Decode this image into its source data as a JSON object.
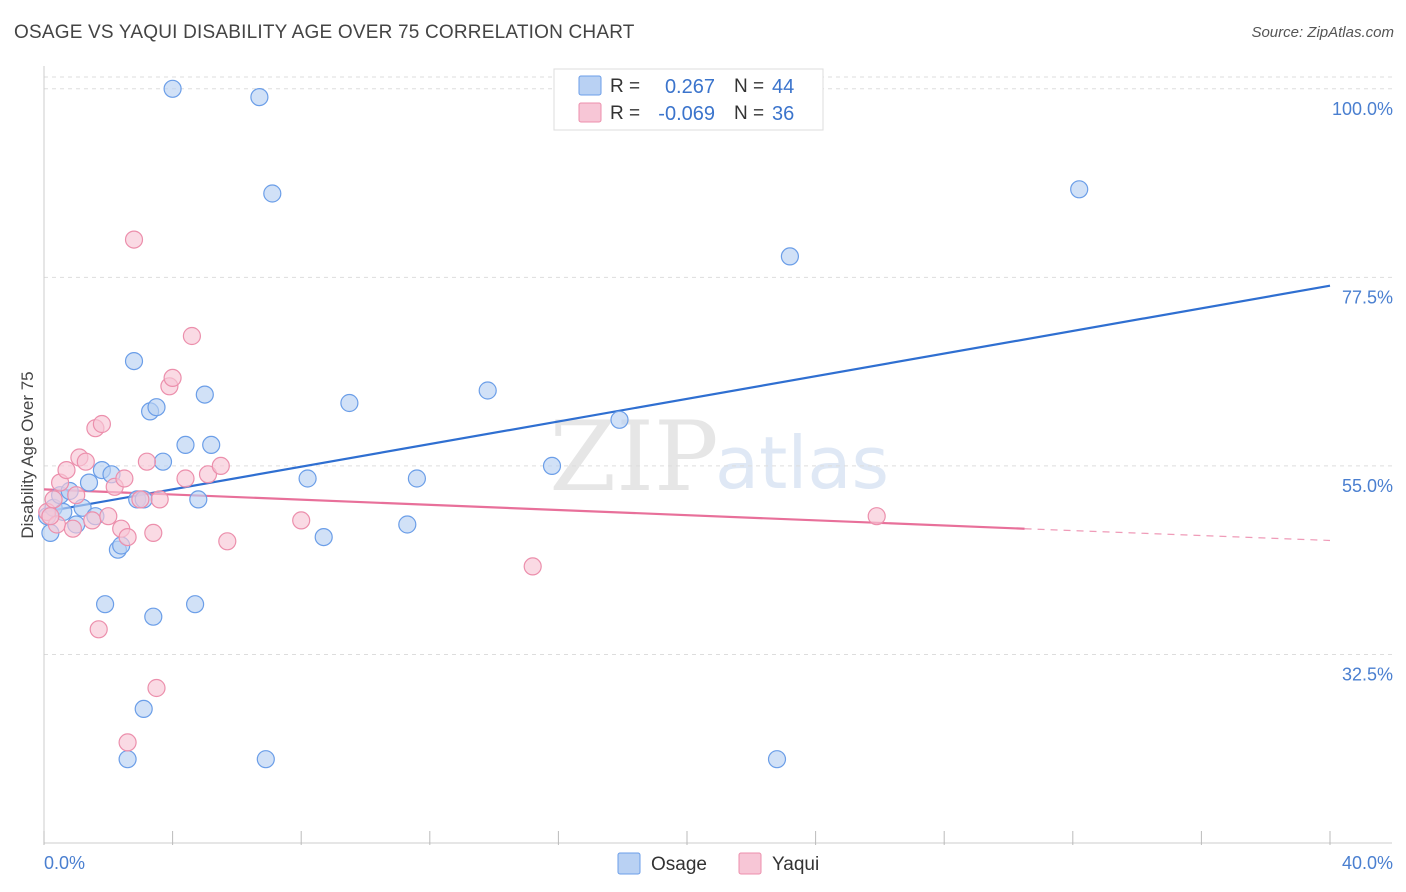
{
  "title": "OSAGE VS YAQUI DISABILITY AGE OVER 75 CORRELATION CHART",
  "source": "Source: ZipAtlas.com",
  "watermark": {
    "zip": "ZIP",
    "atlas": "atlas"
  },
  "colors": {
    "osage": "#6b9ee8",
    "osage_fill": "#b9d1f3",
    "osage_line": "#2f6fd1",
    "yaqui": "#ec8fac",
    "yaqui_fill": "#f7c6d6",
    "yaqui_line": "#e8709a",
    "grid": "#dddddd",
    "tick_text": "#4a7fd0"
  },
  "legend": {
    "rows": [
      {
        "r_label": "R =",
        "r_value": "0.267",
        "n_label": "N =",
        "n_value": "44"
      },
      {
        "r_label": "R =",
        "r_value": "-0.069",
        "n_label": "N =",
        "n_value": "36"
      }
    ]
  },
  "chart_data": {
    "type": "scatter",
    "title": "OSAGE VS YAQUI DISABILITY AGE OVER 75 CORRELATION CHART",
    "xlabel": "",
    "ylabel": "Disability Age Over 75",
    "xlim": [
      0,
      40
    ],
    "ylim": [
      10,
      102
    ],
    "x_tick_labels": [
      "0.0%",
      "40.0%"
    ],
    "y_ticks": [
      32.5,
      55.0,
      77.5,
      100.0
    ],
    "y_tick_labels": [
      "32.5%",
      "55.0%",
      "77.5%",
      "100.0%"
    ],
    "grid": true,
    "series": [
      {
        "name": "Osage",
        "points": [
          [
            0.1,
            49.0
          ],
          [
            0.3,
            50.0
          ],
          [
            0.5,
            51.5
          ],
          [
            0.6,
            49.5
          ],
          [
            0.8,
            52.0
          ],
          [
            1.0,
            48.0
          ],
          [
            1.2,
            50.0
          ],
          [
            1.4,
            53.0
          ],
          [
            1.6,
            49.0
          ],
          [
            1.8,
            54.5
          ],
          [
            2.1,
            54.0
          ],
          [
            2.3,
            45.0
          ],
          [
            2.4,
            45.5
          ],
          [
            2.8,
            67.5
          ],
          [
            2.9,
            51.0
          ],
          [
            3.1,
            51.0
          ],
          [
            3.3,
            61.5
          ],
          [
            3.5,
            62.0
          ],
          [
            3.7,
            55.5
          ],
          [
            4.0,
            100.0
          ],
          [
            4.4,
            57.5
          ],
          [
            4.8,
            51.0
          ],
          [
            5.2,
            57.5
          ],
          [
            5.0,
            63.5
          ],
          [
            6.7,
            99.0
          ],
          [
            7.1,
            87.5
          ],
          [
            8.2,
            53.5
          ],
          [
            8.7,
            46.5
          ],
          [
            9.5,
            62.5
          ],
          [
            11.3,
            48.0
          ],
          [
            11.6,
            53.5
          ],
          [
            13.8,
            64.0
          ],
          [
            15.8,
            55.0
          ],
          [
            17.9,
            60.5
          ],
          [
            23.2,
            80.0
          ],
          [
            32.2,
            88.0
          ],
          [
            1.9,
            38.5
          ],
          [
            3.4,
            37.0
          ],
          [
            4.7,
            38.5
          ],
          [
            3.1,
            26.0
          ],
          [
            2.6,
            20.0
          ],
          [
            6.9,
            20.0
          ],
          [
            22.8,
            20.0
          ],
          [
            0.2,
            47.0
          ]
        ]
      },
      {
        "name": "Yaqui",
        "points": [
          [
            0.1,
            49.5
          ],
          [
            0.3,
            51.0
          ],
          [
            0.4,
            48.0
          ],
          [
            0.5,
            53.0
          ],
          [
            0.7,
            54.5
          ],
          [
            0.9,
            47.5
          ],
          [
            1.0,
            51.5
          ],
          [
            1.1,
            56.0
          ],
          [
            1.3,
            55.5
          ],
          [
            1.5,
            48.5
          ],
          [
            1.6,
            59.5
          ],
          [
            1.8,
            60.0
          ],
          [
            2.0,
            49.0
          ],
          [
            2.2,
            52.5
          ],
          [
            2.4,
            47.5
          ],
          [
            2.6,
            46.5
          ],
          [
            2.5,
            53.5
          ],
          [
            2.8,
            82.0
          ],
          [
            3.0,
            51.0
          ],
          [
            3.2,
            55.5
          ],
          [
            3.4,
            47.0
          ],
          [
            3.6,
            51.0
          ],
          [
            3.9,
            64.5
          ],
          [
            4.0,
            65.5
          ],
          [
            4.4,
            53.5
          ],
          [
            4.6,
            70.5
          ],
          [
            5.1,
            54.0
          ],
          [
            5.5,
            55.0
          ],
          [
            5.7,
            46.0
          ],
          [
            8.0,
            48.5
          ],
          [
            15.2,
            43.0
          ],
          [
            25.9,
            49.0
          ],
          [
            1.7,
            35.5
          ],
          [
            3.5,
            28.5
          ],
          [
            2.6,
            22.0
          ],
          [
            0.2,
            49.0
          ]
        ]
      }
    ],
    "trend_lines": [
      {
        "series": "Osage",
        "x": [
          0,
          40
        ],
        "y": [
          49.5,
          76.5
        ],
        "style": "solid"
      },
      {
        "series": "Yaqui",
        "x": [
          0,
          30.5
        ],
        "y": [
          52.2,
          47.5
        ],
        "style": "solid"
      },
      {
        "series": "Yaqui",
        "x": [
          30.5,
          40
        ],
        "y": [
          47.5,
          46.1
        ],
        "style": "dashed"
      }
    ]
  },
  "bottom_legend": {
    "items": [
      "Osage",
      "Yaqui"
    ]
  }
}
